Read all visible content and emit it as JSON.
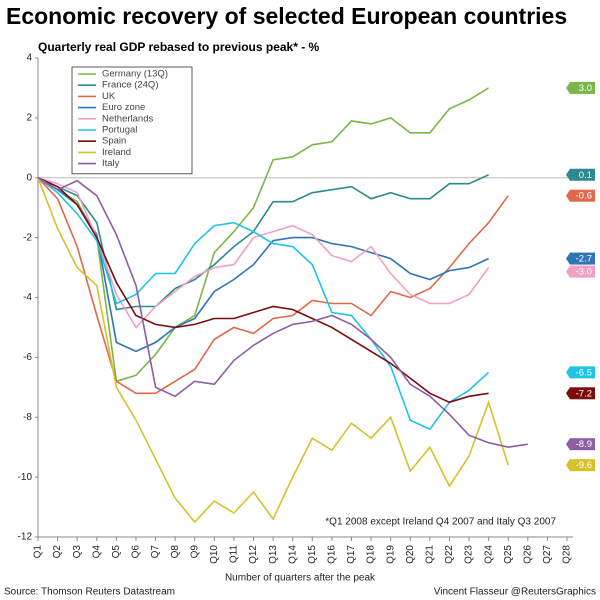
{
  "chart_data": {
    "type": "line",
    "title": "Economic recovery of selected European countries",
    "subtitle": "Quarterly real GDP rebased to previous peak* - %",
    "x_label": "Number of quarters after the peak",
    "footnote": "*Q1 2008 except Ireland Q4 2007 and Italy Q3 2007",
    "source": "Source: Thomson Reuters Datastream",
    "credit": "Vincent Flasseur @ReutersGraphics",
    "categories": [
      "Q1",
      "Q2",
      "Q3",
      "Q4",
      "Q5",
      "Q6",
      "Q7",
      "Q8",
      "Q9",
      "Q10",
      "Q11",
      "Q12",
      "Q13",
      "Q14",
      "Q15",
      "Q16",
      "Q17",
      "Q18",
      "Q19",
      "Q20",
      "Q21",
      "Q22",
      "Q23",
      "Q24",
      "Q25",
      "Q26",
      "Q27",
      "Q28"
    ],
    "ylim": [
      -12,
      4
    ],
    "yticks": [
      4,
      2,
      0,
      -2,
      -4,
      -6,
      -8,
      -10,
      -12
    ],
    "series": [
      {
        "name": "Germany (13Q)",
        "color": "#7ab648",
        "end_label": "3.0",
        "values": [
          0,
          -0.4,
          -0.8,
          -2.0,
          -6.8,
          -6.6,
          -5.9,
          -5.0,
          -4.6,
          -2.5,
          -1.8,
          -1.0,
          0.6,
          0.7,
          1.1,
          1.2,
          1.9,
          1.8,
          2.0,
          1.5,
          1.5,
          2.3,
          2.6,
          3.0,
          null,
          null,
          null,
          null
        ]
      },
      {
        "name": "France (24Q)",
        "color": "#2a8a8f",
        "end_label": "0.1",
        "values": [
          0,
          -0.3,
          -0.6,
          -1.5,
          -4.4,
          -4.3,
          -4.3,
          -3.7,
          -3.4,
          -2.9,
          -2.3,
          -1.8,
          -0.8,
          -0.8,
          -0.5,
          -0.4,
          -0.3,
          -0.7,
          -0.5,
          -0.7,
          -0.7,
          -0.2,
          -0.2,
          0.1,
          null,
          null,
          null,
          null
        ]
      },
      {
        "name": "UK",
        "color": "#e0694a",
        "end_label": "-0.6",
        "values": [
          0,
          -0.7,
          -2.3,
          -4.6,
          -6.8,
          -7.2,
          -7.2,
          -6.8,
          -6.4,
          -5.4,
          -5.0,
          -5.2,
          -4.7,
          -4.6,
          -4.1,
          -4.2,
          -4.2,
          -4.6,
          -3.8,
          -4.0,
          -3.7,
          -3.0,
          -2.2,
          -1.5,
          -0.6,
          null,
          null,
          null
        ]
      },
      {
        "name": "Euro zone",
        "color": "#2f74b5",
        "end_label": "-2.7",
        "values": [
          0,
          -0.4,
          -0.9,
          -1.9,
          -5.5,
          -5.8,
          -5.5,
          -5.0,
          -4.7,
          -3.8,
          -3.4,
          -2.9,
          -2.1,
          -2.0,
          -2.0,
          -2.2,
          -2.3,
          -2.5,
          -2.7,
          -3.2,
          -3.4,
          -3.1,
          -3.0,
          -2.7,
          null,
          null,
          null,
          null
        ]
      },
      {
        "name": "Netherlands",
        "color": "#f2a0c6",
        "end_label": "-3.0",
        "values": [
          0,
          -0.2,
          -0.5,
          -2.0,
          -3.9,
          -5.0,
          -4.3,
          -3.8,
          -3.3,
          -3.0,
          -2.9,
          -2.0,
          -1.8,
          -1.6,
          -1.9,
          -2.6,
          -2.8,
          -2.3,
          -3.2,
          -3.9,
          -4.2,
          -4.2,
          -3.9,
          -3.0,
          null,
          null,
          null,
          null
        ]
      },
      {
        "name": "Portugal",
        "color": "#1ec3e6",
        "end_label": "-6.5",
        "values": [
          0,
          -0.5,
          -1.2,
          -2.1,
          -4.2,
          -3.9,
          -3.2,
          -3.2,
          -2.2,
          -1.6,
          -1.5,
          -1.8,
          -2.2,
          -2.3,
          -2.9,
          -4.5,
          -4.6,
          -5.4,
          -6.3,
          -8.1,
          -8.4,
          -7.5,
          -7.1,
          -6.5,
          null,
          null,
          null,
          null
        ]
      },
      {
        "name": "Spain",
        "color": "#7a0c0c",
        "end_label": "-7.2",
        "values": [
          0,
          -0.3,
          -0.9,
          -2.0,
          -3.5,
          -4.6,
          -4.9,
          -5.0,
          -4.9,
          -4.7,
          -4.7,
          -4.5,
          -4.3,
          -4.4,
          -4.7,
          -5.0,
          -5.4,
          -5.8,
          -6.2,
          -6.7,
          -7.2,
          -7.5,
          -7.3,
          -7.2,
          null,
          null,
          null,
          null
        ]
      },
      {
        "name": "Ireland",
        "color": "#d6c12b",
        "end_label": "-9.6",
        "values": [
          0,
          -1.7,
          -3.0,
          -3.6,
          -7.0,
          -8.1,
          -9.4,
          -10.7,
          -11.5,
          -10.8,
          -11.2,
          -10.5,
          -11.4,
          -10.0,
          -8.7,
          -9.1,
          -8.2,
          -8.7,
          -8.0,
          -9.8,
          -9.0,
          -10.3,
          -9.3,
          -7.5,
          -9.6,
          null,
          null,
          null
        ]
      },
      {
        "name": "Italy",
        "color": "#8e5ea2",
        "end_label": "-8.9",
        "values": [
          0,
          -0.4,
          -0.1,
          -0.6,
          -1.9,
          -3.6,
          -7.0,
          -7.3,
          -6.8,
          -6.9,
          -6.1,
          -5.6,
          -5.2,
          -4.9,
          -4.8,
          -4.6,
          -4.9,
          -5.4,
          -6.0,
          -6.9,
          -7.3,
          -7.9,
          -8.6,
          -8.85,
          -9.0,
          -8.9,
          null,
          null
        ]
      }
    ]
  }
}
